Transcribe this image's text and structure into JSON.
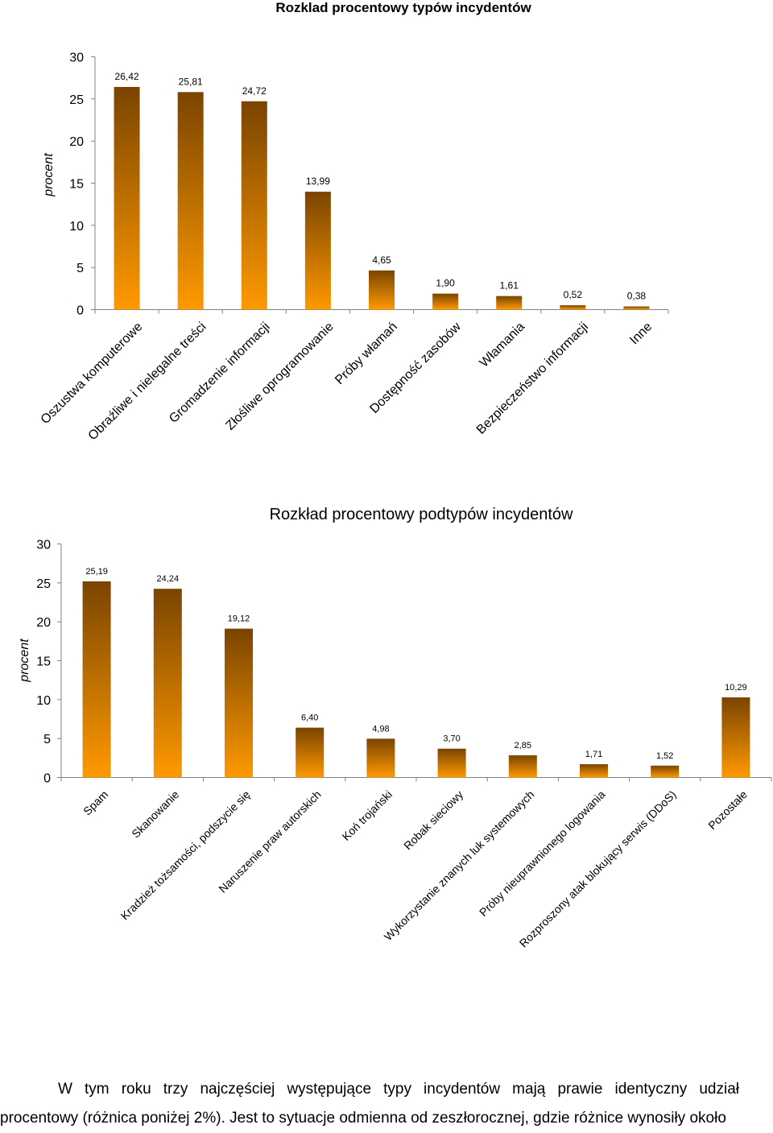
{
  "chart_data": [
    {
      "type": "bar",
      "title": "Rozklad procentowy typów incydentów",
      "xlabel": "",
      "ylabel": "procent",
      "ylim": [
        0,
        30
      ],
      "yticks": [
        "0",
        "5",
        "10",
        "15",
        "20",
        "25",
        "30"
      ],
      "grid": false,
      "legend": "none",
      "categories": [
        "Oszustwa komputerowe",
        "Obraźliwe i nielegalne treści",
        "Gromadzenie informacji",
        "Złośliwe oprogramowanie",
        "Próby włamań",
        "Dostępność zasobów",
        "Włamania",
        "Bezpieczeństwo informacji",
        "Inne"
      ],
      "values": [
        26.42,
        25.81,
        24.72,
        13.99,
        4.65,
        1.9,
        1.61,
        0.52,
        0.38
      ],
      "labels": [
        "26,42",
        "25,81",
        "24,72",
        "13,99",
        "4,65",
        "1,90",
        "1,61",
        "0,52",
        "0,38"
      ],
      "colors": {
        "bar_top": "#7a4400",
        "bar_bottom": "#ff9900"
      }
    },
    {
      "type": "bar",
      "title": "Rozkład procentowy podtypów incydentów",
      "xlabel": "",
      "ylabel": "procent",
      "ylim": [
        0,
        30
      ],
      "yticks": [
        "0",
        "5",
        "10",
        "15",
        "20",
        "25",
        "30"
      ],
      "grid": false,
      "legend": "none",
      "categories": [
        "Spam",
        "Skanowanie",
        "Kradzież tożsamości, podszycie się",
        "Naruszenie praw autorskich",
        "Koń trojański",
        "Robak sieciowy",
        "Wykorzystanie znanych luk systemowych",
        "Próby nieuprawnionego logowania",
        "Rozproszony atak blokujący serwis (DDoS)",
        "Pozostałe"
      ],
      "values": [
        25.19,
        24.24,
        19.12,
        6.4,
        4.98,
        3.7,
        2.85,
        1.71,
        1.52,
        10.29
      ],
      "labels": [
        "25,19",
        "24,24",
        "19,12",
        "6,40",
        "4,98",
        "3,70",
        "2,85",
        "1,71",
        "1,52",
        "10,29"
      ],
      "colors": {
        "bar_top": "#7a4400",
        "bar_bottom": "#ff9900"
      }
    }
  ],
  "paragraph": {
    "line1": "W tym roku trzy najczęściej występujące typy incydentów mają prawie identyczny udział",
    "line2": "procentowy (różnica poniżej 2%). Jest to sytuacje odmienna od  zeszłorocznej, gdzie różnice wynosiły około"
  }
}
